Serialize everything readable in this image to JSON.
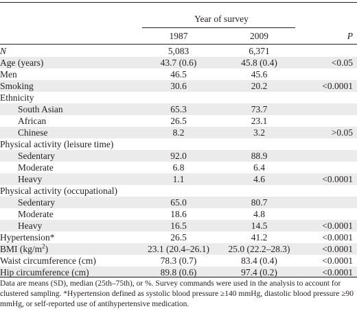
{
  "header": {
    "group_label": "Year of survey",
    "col_1987": "1987",
    "col_2009": "2009",
    "col_p": "P"
  },
  "rows": [
    {
      "label": "N",
      "v1987": "5,083",
      "v2009": "6,371",
      "p": ""
    },
    {
      "label": "Age (years)",
      "v1987": "43.7 (0.6)",
      "v2009": "45.8 (0.4)",
      "p": "<0.05"
    },
    {
      "label": "Men",
      "v1987": "46.5",
      "v2009": "45.6",
      "p": ""
    },
    {
      "label": "Smoking",
      "v1987": "30.6",
      "v2009": "20.2",
      "p": "<0.0001"
    },
    {
      "label": "Ethnicity",
      "v1987": "",
      "v2009": "",
      "p": ""
    },
    {
      "label": "South Asian",
      "v1987": "65.3",
      "v2009": "73.7",
      "p": ""
    },
    {
      "label": "African",
      "v1987": "26.5",
      "v2009": "23.1",
      "p": ""
    },
    {
      "label": "Chinese",
      "v1987": "8.2",
      "v2009": "3.2",
      "p": ">0.05"
    },
    {
      "label": "Physical activity (leisure time)",
      "v1987": "",
      "v2009": "",
      "p": ""
    },
    {
      "label": "Sedentary",
      "v1987": "92.0",
      "v2009": "88.9",
      "p": ""
    },
    {
      "label": "Moderate",
      "v1987": "6.8",
      "v2009": "6.4",
      "p": ""
    },
    {
      "label": "Heavy",
      "v1987": "1.1",
      "v2009": "4.6",
      "p": "<0.0001"
    },
    {
      "label": "Physical activity (occupational)",
      "v1987": "",
      "v2009": "",
      "p": ""
    },
    {
      "label": "Sedentary",
      "v1987": "65.0",
      "v2009": "80.7",
      "p": ""
    },
    {
      "label": "Moderate",
      "v1987": "18.6",
      "v2009": "4.8",
      "p": ""
    },
    {
      "label": "Heavy",
      "v1987": "16.5",
      "v2009": "14.5",
      "p": "<0.0001"
    },
    {
      "label": "Hypertension*",
      "v1987": "26.5",
      "v2009": "41.2",
      "p": "<0.0001"
    },
    {
      "label": "BMI (kg/m",
      "label_sup": "2",
      "label_tail": ")",
      "v1987": "23.1 (20.4–26.1)",
      "v2009": "25.0 (22.2–28.3)",
      "p": "<0.0001"
    },
    {
      "label": "Waist circumference (cm)",
      "v1987": "78.3 (0.7)",
      "v2009": "83.4 (0.4)",
      "p": "<0.0001"
    },
    {
      "label": "Hip circumference (cm)",
      "v1987": "89.8 (0.6)",
      "v2009": "97.4 (0.2)",
      "p": "<0.0001"
    }
  ],
  "footnote": "Data are means (SD), median (25th–75th), or %. Survey commands were used in the analysis to account for clustered sampling. *Hypertension defined as systolic blood pressure ≥140 mmHg, diastolic blood pressure ≥90 mmHg, or self-reported use of antihypertensive medication."
}
